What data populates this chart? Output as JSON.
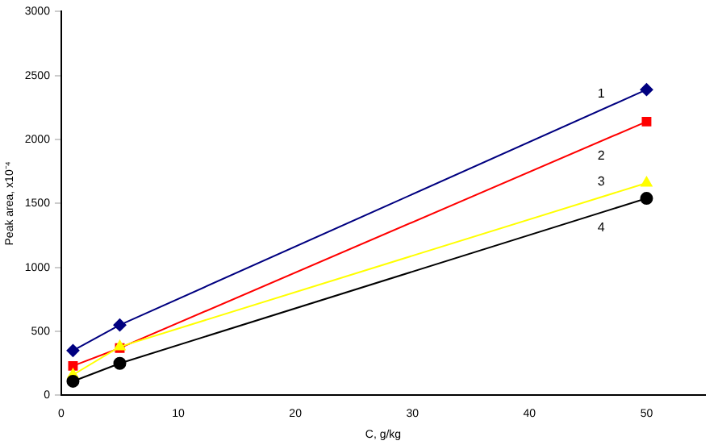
{
  "chart_data": {
    "type": "line",
    "xlabel": "C, g/kg",
    "ylabel": "Peak area, x10⁻⁴",
    "xlim": [
      0,
      55
    ],
    "xticks": [
      0,
      10,
      20,
      30,
      40,
      50
    ],
    "ylim": [
      0,
      3000
    ],
    "yticks": [
      0,
      500,
      1000,
      1500,
      2000,
      2500,
      3000
    ],
    "grid": false,
    "legend": false,
    "x": [
      1,
      5,
      50
    ],
    "series": [
      {
        "name": "1",
        "color": "#000080",
        "marker": "diamond",
        "values": [
          350,
          550,
          2390
        ]
      },
      {
        "name": "2",
        "color": "#ff0000",
        "marker": "square",
        "values": [
          230,
          370,
          2140
        ]
      },
      {
        "name": "3",
        "color": "#ffff00",
        "marker": "triangle",
        "values": [
          160,
          380,
          1660
        ]
      },
      {
        "name": "4",
        "color": "#000000",
        "marker": "circle",
        "values": [
          110,
          250,
          1540
        ]
      }
    ]
  }
}
